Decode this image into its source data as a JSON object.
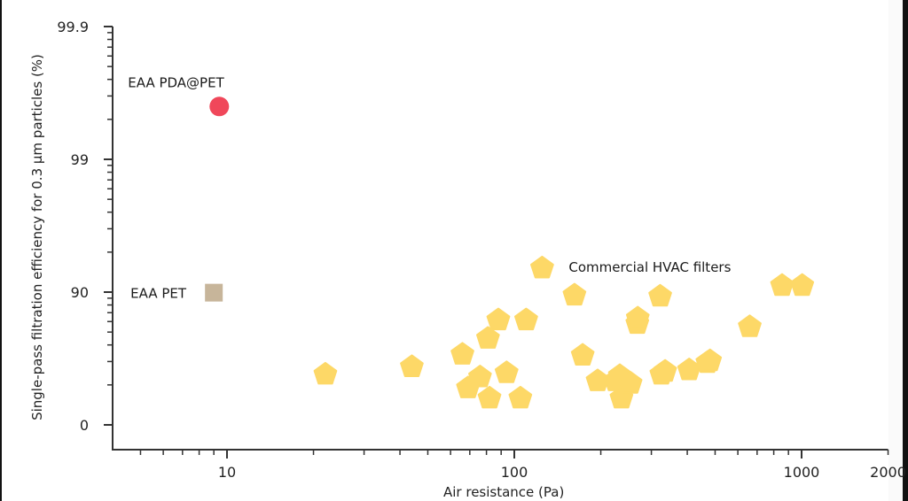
{
  "chart_data": {
    "type": "scatter",
    "title": "",
    "xlabel": "Air resistance (Pa)",
    "ylabel": "Single-pass filtration efficiency for 0.3 µm particles (%)",
    "xscale": "log",
    "yscale": "nines",
    "xlim": [
      4,
      2000
    ],
    "ylim": [
      0,
      99.9
    ],
    "x_ticks": [
      {
        "value": 10,
        "label": "10"
      },
      {
        "value": 100,
        "label": "100"
      },
      {
        "value": 1000,
        "label": "1000"
      },
      {
        "value": 2000,
        "label": "2000"
      }
    ],
    "y_ticks": [
      {
        "value": 0,
        "label": "0"
      },
      {
        "value": 90,
        "label": "90"
      },
      {
        "value": 99,
        "label": "99"
      },
      {
        "value": 99.9,
        "label": "99.9"
      }
    ],
    "grid": false,
    "legend": "none",
    "series": [
      {
        "name": "EAA PDA@PET",
        "marker": "circle",
        "color": "#f0475a",
        "points": [
          {
            "x": 9.4,
            "y": 99.6
          }
        ]
      },
      {
        "name": "EAA PET",
        "marker": "square",
        "color": "#c7b59a",
        "points": [
          {
            "x": 9.0,
            "y": 89.9
          }
        ]
      },
      {
        "name": "Commercial HVAC filters",
        "marker": "pentagon",
        "color": "#fdd867",
        "points": [
          {
            "x": 22,
            "y": 59
          },
          {
            "x": 44,
            "y": 64
          },
          {
            "x": 66,
            "y": 71
          },
          {
            "x": 69,
            "y": 48
          },
          {
            "x": 76,
            "y": 57
          },
          {
            "x": 81,
            "y": 78
          },
          {
            "x": 82,
            "y": 38
          },
          {
            "x": 88,
            "y": 84
          },
          {
            "x": 94,
            "y": 60
          },
          {
            "x": 105,
            "y": 38
          },
          {
            "x": 110,
            "y": 84
          },
          {
            "x": 125,
            "y": 93.5
          },
          {
            "x": 162,
            "y": 89.6
          },
          {
            "x": 173,
            "y": 70.5
          },
          {
            "x": 195,
            "y": 54
          },
          {
            "x": 225,
            "y": 54
          },
          {
            "x": 233,
            "y": 58
          },
          {
            "x": 236,
            "y": 38
          },
          {
            "x": 254,
            "y": 52
          },
          {
            "x": 268,
            "y": 83
          },
          {
            "x": 269,
            "y": 84.5
          },
          {
            "x": 322,
            "y": 89.4
          },
          {
            "x": 325,
            "y": 59
          },
          {
            "x": 335,
            "y": 61
          },
          {
            "x": 406,
            "y": 62
          },
          {
            "x": 470,
            "y": 66.5
          },
          {
            "x": 480,
            "y": 67.5
          },
          {
            "x": 660,
            "y": 82
          },
          {
            "x": 855,
            "y": 91.2
          },
          {
            "x": 1005,
            "y": 91.2
          }
        ]
      }
    ],
    "annotations": [
      {
        "text": "EAA PDA@PET",
        "near": "EAA PDA@PET",
        "position": "above"
      },
      {
        "text": "EAA PET",
        "near": "EAA PET",
        "position": "left"
      },
      {
        "text": "Commercial HVAC filters",
        "near": "Commercial HVAC filters",
        "position": "right"
      }
    ]
  }
}
